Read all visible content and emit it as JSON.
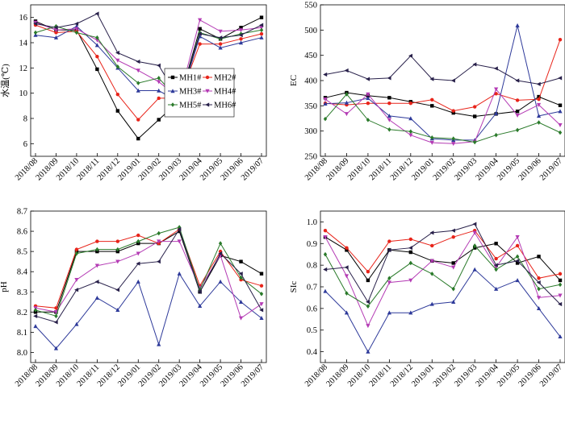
{
  "series_styles": [
    {
      "name": "MH1#",
      "color": "#000000",
      "marker": "square"
    },
    {
      "name": "MH2#",
      "color": "#e8241a",
      "marker": "circle"
    },
    {
      "name": "MH3#",
      "color": "#2e3a9a",
      "marker": "triangle"
    },
    {
      "name": "MH4#",
      "color": "#b43bb4",
      "marker": "invtriangle"
    },
    {
      "name": "MH5#",
      "color": "#2a7a2a",
      "marker": "diamond"
    },
    {
      "name": "MH6#",
      "color": "#28204a",
      "marker": "lefttriangle"
    }
  ],
  "chart_data": [
    {
      "type": "line",
      "ylabel": "水温(℃)",
      "ylim": [
        5,
        17
      ],
      "yticks": [
        6,
        8,
        10,
        12,
        14,
        16
      ],
      "categories": [
        "2018/08",
        "2018/09",
        "2018/10",
        "2018/11",
        "2018/12",
        "2019/01",
        "2019/02",
        "2019/03",
        "2019/04",
        "2019/05",
        "2019/06",
        "2019/07"
      ],
      "legend": "inside-lower-right",
      "series": [
        {
          "name": "MH1#",
          "values": [
            15.7,
            15.0,
            15.0,
            11.9,
            8.6,
            6.4,
            7.9,
            9.4,
            15.1,
            14.3,
            15.2,
            16.0
          ]
        },
        {
          "name": "MH2#",
          "values": [
            15.4,
            14.8,
            14.9,
            12.9,
            9.9,
            7.9,
            9.6,
            9.6,
            13.9,
            13.9,
            14.3,
            14.7
          ]
        },
        {
          "name": "MH3#",
          "values": [
            14.6,
            14.4,
            15.3,
            13.8,
            12.0,
            10.2,
            10.2,
            9.3,
            14.5,
            13.6,
            14.0,
            14.4
          ]
        },
        {
          "name": "MH4#",
          "values": [
            15.6,
            15.0,
            15.1,
            14.2,
            12.6,
            11.8,
            10.9,
            9.6,
            15.8,
            14.9,
            15.0,
            15.2
          ]
        },
        {
          "name": "MH5#",
          "values": [
            14.8,
            15.3,
            14.8,
            14.4,
            12.1,
            10.8,
            11.2,
            9.4,
            14.8,
            14.3,
            14.7,
            15.0
          ]
        },
        {
          "name": "MH6#",
          "values": [
            15.5,
            15.2,
            15.5,
            16.3,
            13.2,
            12.5,
            12.2,
            9.5,
            14.7,
            14.4,
            14.6,
            15.4
          ]
        }
      ]
    },
    {
      "type": "line",
      "ylabel": "EC",
      "ylim": [
        250,
        550
      ],
      "yticks": [
        250,
        300,
        350,
        400,
        450,
        500,
        550
      ],
      "categories": [
        "2018/08",
        "2018/09",
        "2018/10",
        "2018/11",
        "2018/12",
        "2019/01",
        "2019/02",
        "2019/03",
        "2019/04",
        "2019/05",
        "2019/06",
        "2019/07"
      ],
      "series": [
        {
          "name": "MH1#",
          "values": [
            366,
            376,
            370,
            366,
            358,
            350,
            336,
            329,
            334,
            339,
            368,
            351
          ]
        },
        {
          "name": "MH2#",
          "values": [
            355,
            352,
            355,
            355,
            355,
            362,
            340,
            348,
            374,
            361,
            363,
            481
          ]
        },
        {
          "name": "MH3#",
          "values": [
            354,
            356,
            365,
            330,
            325,
            285,
            282,
            282,
            335,
            509,
            330,
            339
          ]
        },
        {
          "name": "MH4#",
          "values": [
            363,
            334,
            373,
            322,
            292,
            277,
            275,
            279,
            383,
            331,
            352,
            312
          ]
        },
        {
          "name": "MH5#",
          "values": [
            324,
            373,
            322,
            303,
            299,
            287,
            285,
            278,
            292,
            302,
            317,
            297
          ]
        },
        {
          "name": "MH6#",
          "values": [
            412,
            420,
            403,
            405,
            449,
            403,
            400,
            432,
            424,
            400,
            393,
            405
          ]
        }
      ]
    },
    {
      "type": "line",
      "ylabel": "pH",
      "ylim": [
        7.95,
        8.7
      ],
      "yticks": [
        8.0,
        8.1,
        8.2,
        8.3,
        8.4,
        8.5,
        8.6,
        8.7
      ],
      "categories": [
        "2018/08",
        "2018/09",
        "2018/10",
        "2018/11",
        "2018/12",
        "2019/01",
        "2019/02",
        "2019/03",
        "2019/04",
        "2019/05",
        "2019/06",
        "2019/07"
      ],
      "series": [
        {
          "name": "MH1#",
          "values": [
            8.2,
            8.2,
            8.5,
            8.5,
            8.5,
            8.54,
            8.54,
            8.6,
            8.3,
            8.48,
            8.45,
            8.39
          ]
        },
        {
          "name": "MH2#",
          "values": [
            8.23,
            8.22,
            8.51,
            8.55,
            8.55,
            8.58,
            8.54,
            8.61,
            8.33,
            8.5,
            8.36,
            8.33
          ]
        },
        {
          "name": "MH3#",
          "values": [
            8.13,
            8.02,
            8.14,
            8.27,
            8.21,
            8.35,
            8.04,
            8.39,
            8.23,
            8.35,
            8.25,
            8.17
          ]
        },
        {
          "name": "MH4#",
          "values": [
            8.22,
            8.2,
            8.36,
            8.43,
            8.45,
            8.49,
            8.55,
            8.55,
            8.32,
            8.48,
            8.17,
            8.24
          ]
        },
        {
          "name": "MH5#",
          "values": [
            8.21,
            8.18,
            8.49,
            8.51,
            8.51,
            8.55,
            8.59,
            8.62,
            8.31,
            8.54,
            8.37,
            8.29
          ]
        },
        {
          "name": "MH6#",
          "values": [
            8.18,
            8.15,
            8.31,
            8.35,
            8.31,
            8.44,
            8.45,
            8.61,
            8.3,
            8.49,
            8.39,
            8.21
          ]
        }
      ]
    },
    {
      "type": "line",
      "ylabel": "SIc",
      "ylim": [
        0.35,
        1.05
      ],
      "yticks": [
        0.4,
        0.5,
        0.6,
        0.7,
        0.8,
        0.9,
        1.0
      ],
      "categories": [
        "2018/08",
        "2018/09",
        "2018/10",
        "2018/11",
        "2018/12",
        "2019/01",
        "2019/02",
        "2019/03",
        "2019/04",
        "2019/05",
        "2019/06",
        "2019/07"
      ],
      "series": [
        {
          "name": "MH1#",
          "values": [
            0.93,
            0.87,
            0.73,
            0.87,
            0.86,
            0.82,
            0.81,
            0.88,
            0.9,
            0.81,
            0.84,
            0.73
          ]
        },
        {
          "name": "MH2#",
          "values": [
            0.96,
            0.88,
            0.77,
            0.91,
            0.92,
            0.89,
            0.93,
            0.96,
            0.83,
            0.89,
            0.74,
            0.76
          ]
        },
        {
          "name": "MH3#",
          "values": [
            0.68,
            0.58,
            0.4,
            0.58,
            0.58,
            0.62,
            0.63,
            0.78,
            0.69,
            0.73,
            0.6,
            0.47
          ]
        },
        {
          "name": "MH4#",
          "values": [
            0.93,
            0.75,
            0.52,
            0.72,
            0.73,
            0.82,
            0.79,
            0.95,
            0.79,
            0.93,
            0.65,
            0.66
          ]
        },
        {
          "name": "MH5#",
          "values": [
            0.85,
            0.67,
            0.61,
            0.74,
            0.81,
            0.76,
            0.69,
            0.89,
            0.78,
            0.84,
            0.69,
            0.71
          ]
        },
        {
          "name": "MH6#",
          "values": [
            0.78,
            0.79,
            0.63,
            0.87,
            0.88,
            0.95,
            0.96,
            0.99,
            0.8,
            0.82,
            0.72,
            0.62
          ]
        }
      ]
    }
  ]
}
